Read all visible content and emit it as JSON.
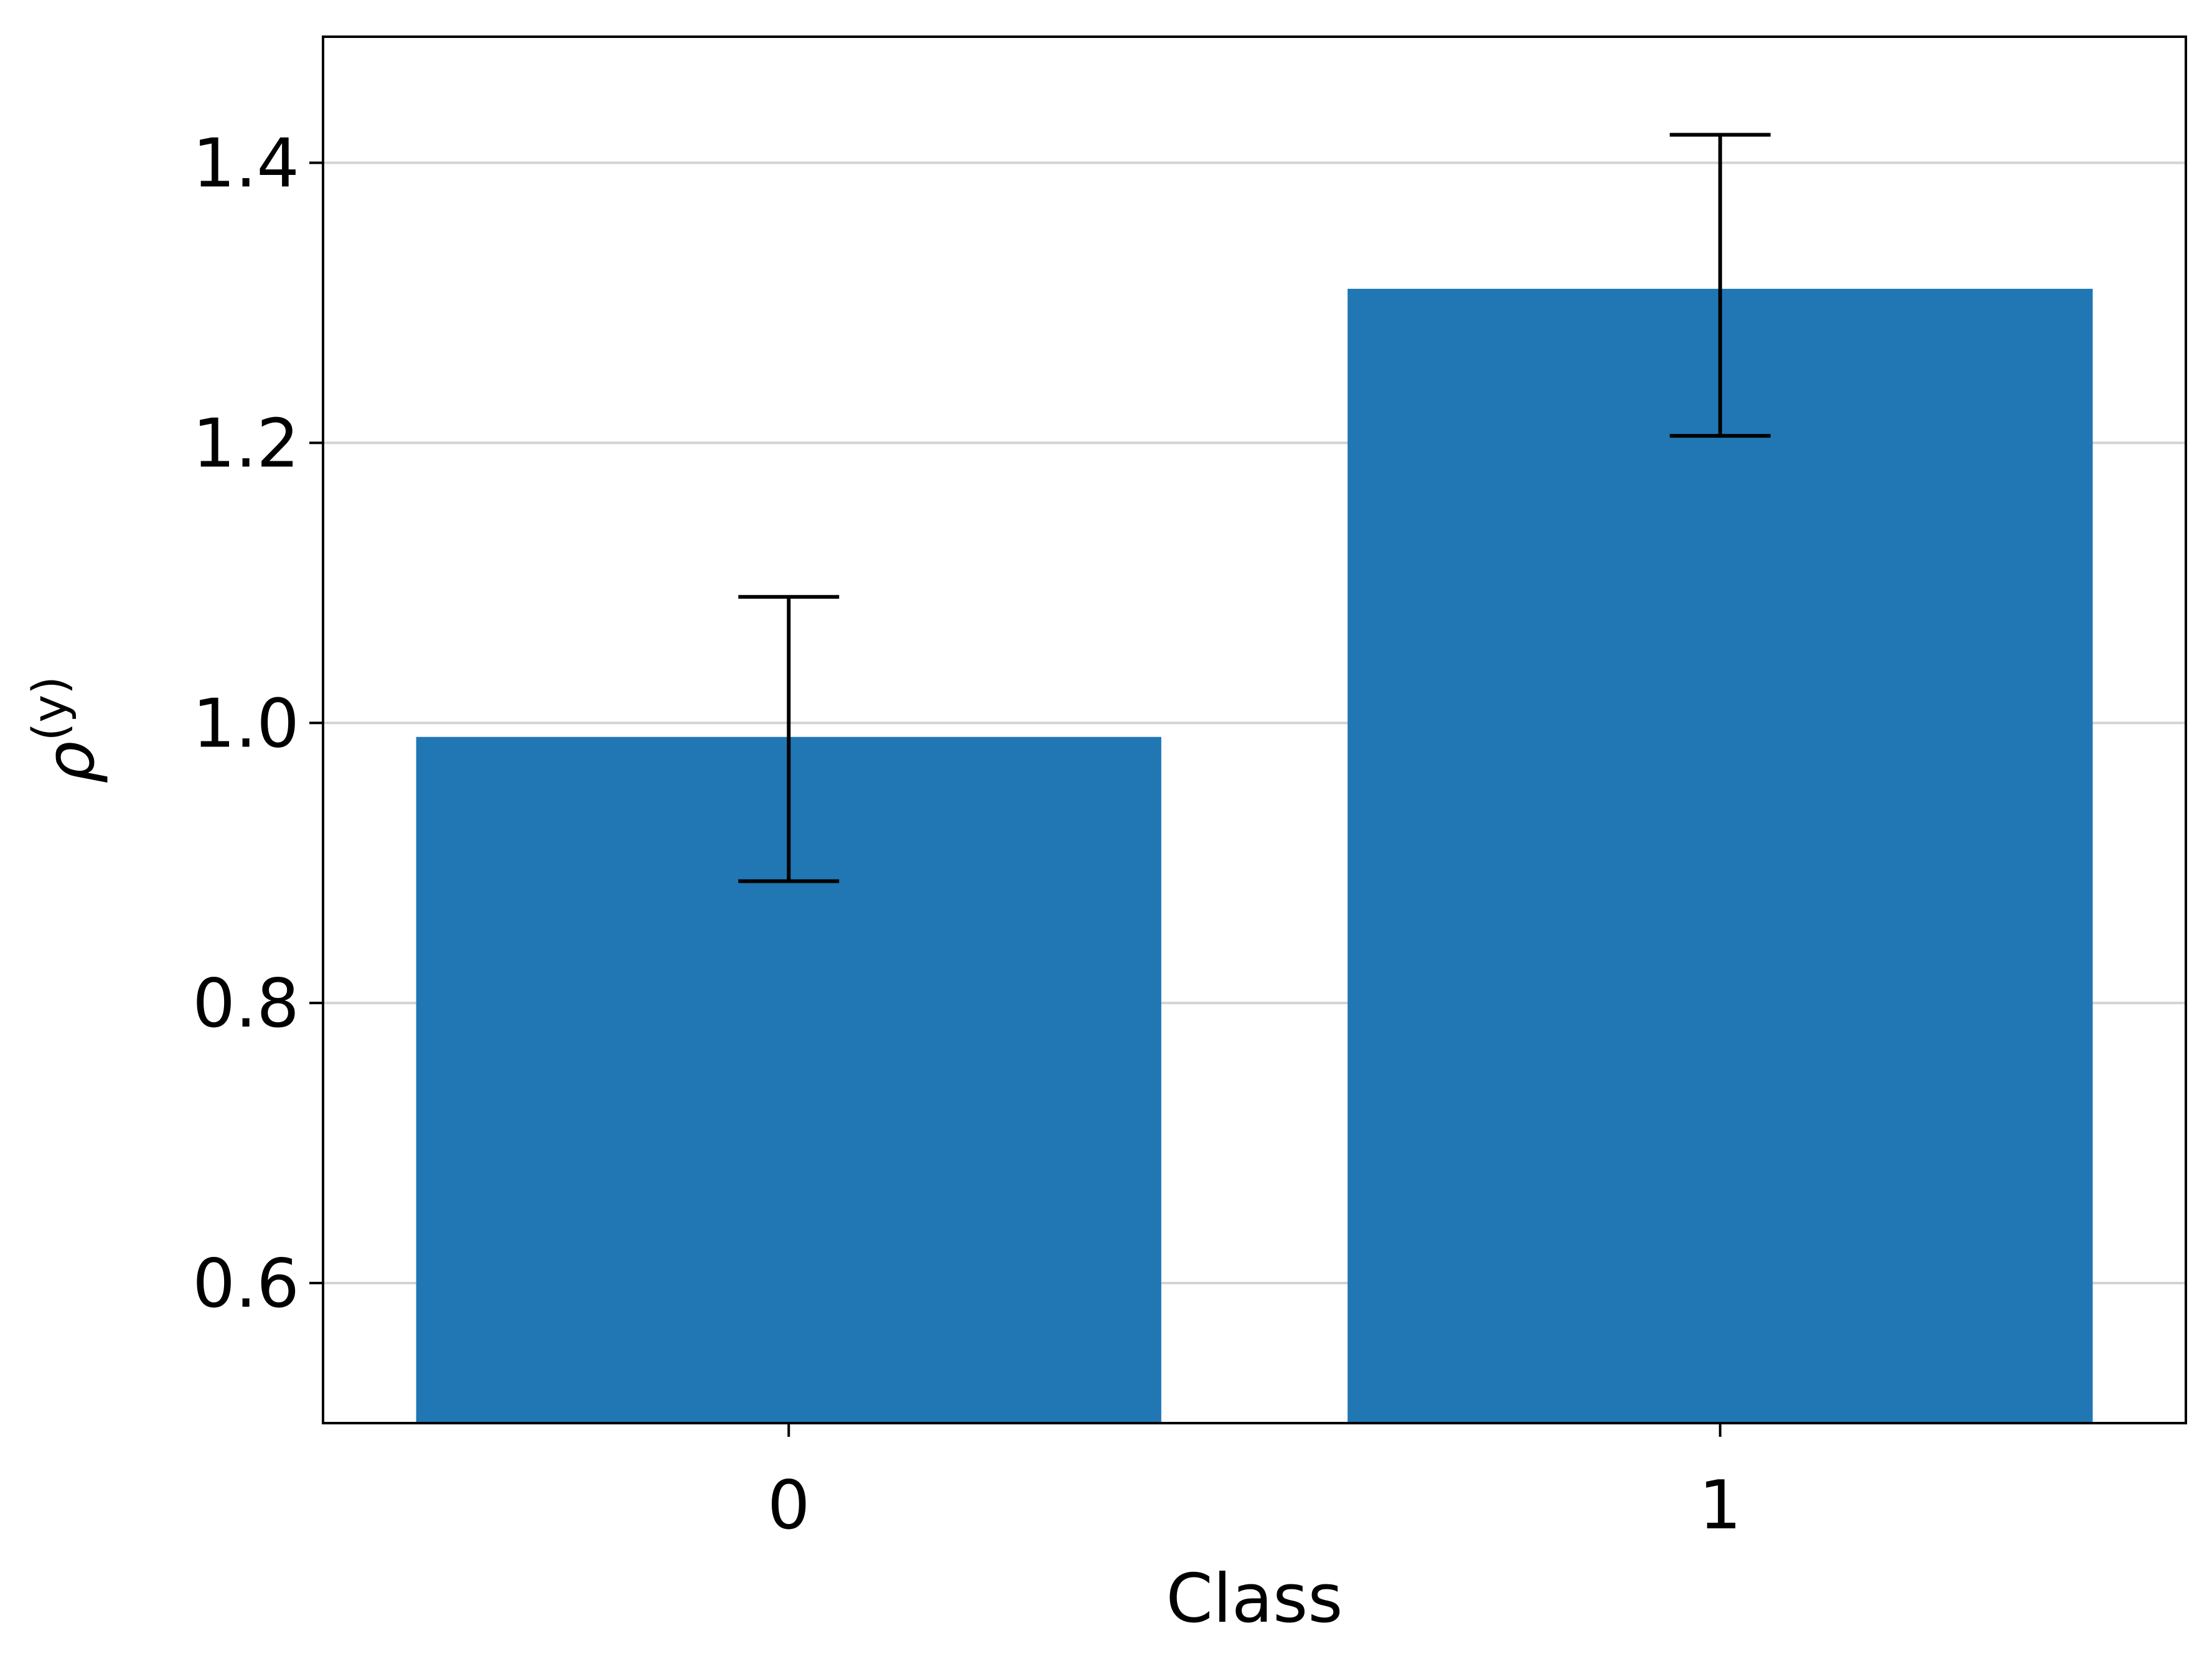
{
  "chart_data": {
    "type": "bar",
    "title": "",
    "xlabel": "Class",
    "ylabel": {
      "base": "ρ",
      "superscript": "(y)"
    },
    "categories": [
      "0",
      "1"
    ],
    "values": [
      0.99,
      1.31
    ],
    "error_upper": [
      1.09,
      1.42
    ],
    "error_lower": [
      0.887,
      1.205
    ],
    "ylim": [
      0.5,
      1.49
    ],
    "yticks": [
      0.6,
      0.8,
      1.0,
      1.2,
      1.4
    ],
    "ytick_labels": [
      "0.6",
      "0.8",
      "1.0",
      "1.2",
      "1.4"
    ],
    "grid": "horizontal",
    "colors": {
      "bar": "#2077b4",
      "errorbar": "#000000",
      "grid": "#d3d3d3",
      "axes": "#000000"
    }
  }
}
